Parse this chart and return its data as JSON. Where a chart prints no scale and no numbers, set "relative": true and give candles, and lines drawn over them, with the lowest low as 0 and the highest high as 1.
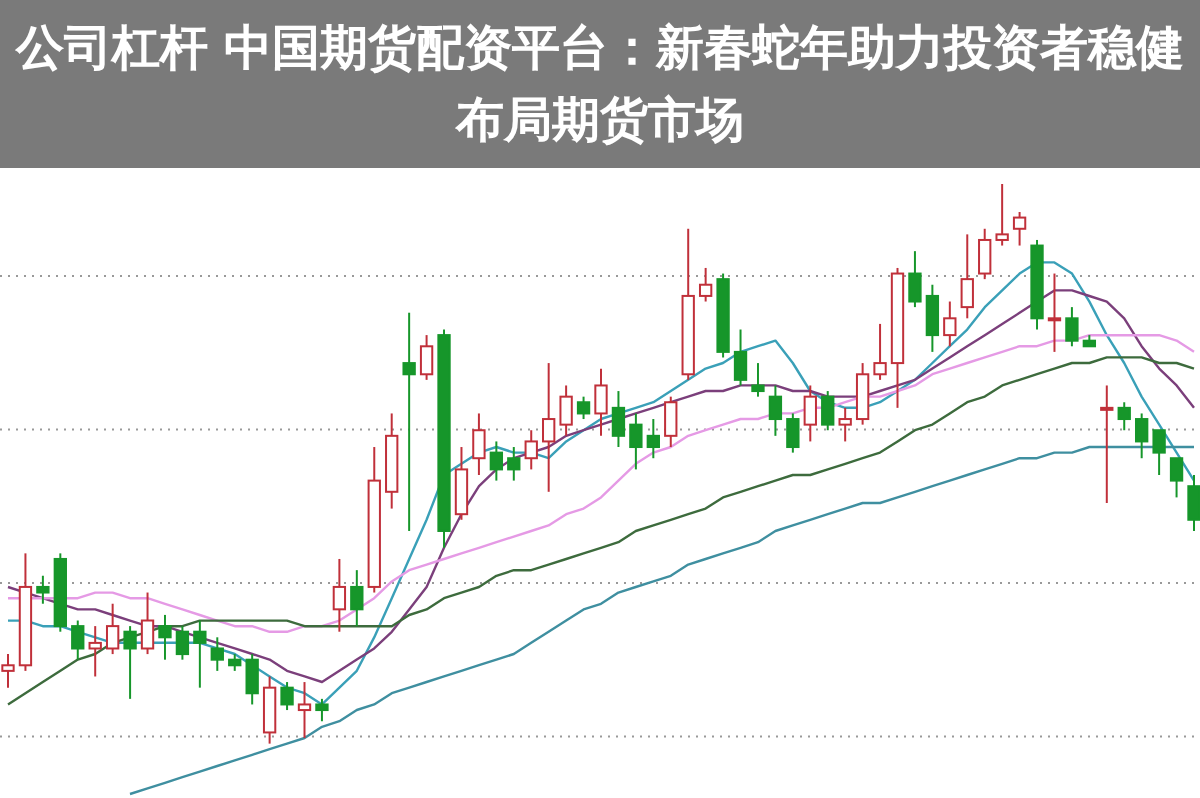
{
  "chart_data": {
    "type": "candlestick",
    "title": "公司杠杆 中国期货配资平台：新春蛇年助力投资者稳健布局期货市场",
    "relative": true,
    "grid": "y",
    "categories": [
      null,
      null,
      null,
      null,
      null,
      null,
      null,
      null,
      null,
      null,
      null,
      null,
      null,
      null,
      null,
      null,
      null,
      null,
      null,
      null,
      null,
      null,
      null,
      null,
      null,
      null,
      null,
      null,
      null,
      null,
      null,
      null,
      null,
      null,
      null,
      null,
      null,
      null,
      null,
      null,
      null,
      null,
      null,
      null,
      null,
      null,
      null,
      null,
      null,
      null,
      null,
      null,
      null,
      null,
      null,
      null,
      null,
      null,
      null,
      null,
      null,
      null,
      null,
      null,
      null,
      null,
      null,
      null,
      null
    ],
    "ohlc": [
      [
        0.13,
        0.16,
        0.1,
        0.14
      ],
      [
        0.14,
        0.34,
        0.13,
        0.28
      ],
      [
        0.28,
        0.3,
        0.25,
        0.27
      ],
      [
        0.33,
        0.34,
        0.2,
        0.21
      ],
      [
        0.21,
        0.22,
        0.15,
        0.17
      ],
      [
        0.17,
        0.21,
        0.12,
        0.18
      ],
      [
        0.17,
        0.25,
        0.16,
        0.21
      ],
      [
        0.2,
        0.21,
        0.08,
        0.17
      ],
      [
        0.17,
        0.27,
        0.16,
        0.22
      ],
      [
        0.21,
        0.23,
        0.15,
        0.19
      ],
      [
        0.2,
        0.21,
        0.15,
        0.16
      ],
      [
        0.2,
        0.22,
        0.1,
        0.18
      ],
      [
        0.17,
        0.19,
        0.13,
        0.15
      ],
      [
        0.15,
        0.16,
        0.13,
        0.14
      ],
      [
        0.15,
        0.16,
        0.07,
        0.09
      ],
      [
        0.02,
        0.12,
        0,
        0.1
      ],
      [
        0.1,
        0.11,
        0.06,
        0.07
      ],
      [
        0.06,
        0.11,
        0.01,
        0.07
      ],
      [
        0.07,
        0.08,
        0.04,
        0.06
      ],
      [
        0.24,
        0.33,
        0.2,
        0.28
      ],
      [
        0.28,
        0.31,
        0.21,
        0.24
      ],
      [
        0.28,
        0.53,
        0.27,
        0.47
      ],
      [
        0.45,
        0.59,
        0.42,
        0.55
      ],
      [
        0.68,
        0.77,
        0.38,
        0.66
      ],
      [
        0.66,
        0.73,
        0.65,
        0.71
      ],
      [
        0.73,
        0.74,
        0.35,
        0.38
      ],
      [
        0.41,
        0.53,
        0.4,
        0.49
      ],
      [
        0.51,
        0.59,
        0.48,
        0.56
      ],
      [
        0.52,
        0.54,
        0.47,
        0.49
      ],
      [
        0.51,
        0.53,
        0.47,
        0.49
      ],
      [
        0.51,
        0.56,
        0.49,
        0.54
      ],
      [
        0.54,
        0.68,
        0.45,
        0.58
      ],
      [
        0.57,
        0.64,
        0.55,
        0.62
      ],
      [
        0.61,
        0.62,
        0.58,
        0.59
      ],
      [
        0.59,
        0.67,
        0.55,
        0.64
      ],
      [
        0.6,
        0.63,
        0.53,
        0.55
      ],
      [
        0.57,
        0.59,
        0.49,
        0.53
      ],
      [
        0.55,
        0.58,
        0.51,
        0.53
      ],
      [
        0.55,
        0.62,
        0.53,
        0.61
      ],
      [
        0.66,
        0.92,
        0.65,
        0.8
      ],
      [
        0.8,
        0.85,
        0.79,
        0.82
      ],
      [
        0.83,
        0.84,
        0.69,
        0.7
      ],
      [
        0.7,
        0.74,
        0.64,
        0.65
      ],
      [
        0.64,
        0.68,
        0.62,
        0.63
      ],
      [
        0.62,
        0.64,
        0.55,
        0.58
      ],
      [
        0.58,
        0.59,
        0.52,
        0.53
      ],
      [
        0.57,
        0.64,
        0.54,
        0.62
      ],
      [
        0.62,
        0.63,
        0.56,
        0.57
      ],
      [
        0.57,
        0.6,
        0.54,
        0.58
      ],
      [
        0.58,
        0.68,
        0.57,
        0.66
      ],
      [
        0.66,
        0.75,
        0.65,
        0.68
      ],
      [
        0.68,
        0.85,
        0.6,
        0.84
      ],
      [
        0.84,
        0.88,
        0.78,
        0.79
      ],
      [
        0.8,
        0.82,
        0.7,
        0.73
      ],
      [
        0.73,
        0.79,
        0.71,
        0.76
      ],
      [
        0.78,
        0.91,
        0.76,
        0.83
      ],
      [
        0.84,
        0.92,
        0.83,
        0.9
      ],
      [
        0.9,
        1,
        0.89,
        0.91
      ],
      [
        0.92,
        0.95,
        0.89,
        0.94
      ],
      [
        0.89,
        0.9,
        0.74,
        0.76
      ],
      [
        0.76,
        0.84,
        0.7,
        0.76
      ],
      [
        0.76,
        0.78,
        0.71,
        0.72
      ],
      [
        0.72,
        0.73,
        0.71,
        0.71
      ],
      [
        0.6,
        0.64,
        0.43,
        0.6
      ],
      [
        0.6,
        0.61,
        0.56,
        0.58
      ],
      [
        0.58,
        0.59,
        0.51,
        0.54
      ],
      [
        0.56,
        0.56,
        0.48,
        0.52
      ],
      [
        0.51,
        0.51,
        0.44,
        0.47
      ],
      [
        0.46,
        0.48,
        0.38,
        0.4
      ]
    ],
    "series": [
      {
        "type": "line",
        "color": "#3aa0b8",
        "values": [
          0.22,
          0.22,
          0.21,
          0.21,
          0.2,
          0.19,
          0.18,
          0.18,
          0.18,
          0.18,
          0.18,
          0.18,
          0.17,
          0.16,
          0.14,
          0.12,
          0.1,
          0.09,
          0.07,
          0.1,
          0.13,
          0.19,
          0.26,
          0.33,
          0.4,
          0.48,
          0.5,
          0.52,
          0.53,
          0.52,
          0.52,
          0.51,
          0.54,
          0.56,
          0.58,
          0.59,
          0.6,
          0.61,
          0.63,
          0.65,
          0.67,
          0.68,
          0.7,
          0.71,
          0.72,
          0.68,
          0.63,
          0.61,
          0.6,
          0.6,
          0.61,
          0.63,
          0.65,
          0.68,
          0.71,
          0.74,
          0.78,
          0.81,
          0.84,
          0.86,
          0.86,
          0.84,
          0.79,
          0.73,
          0.68,
          0.62,
          0.57,
          0.52,
          0.47
        ]
      },
      {
        "type": "line",
        "color": "#7b3f7b",
        "values": [
          0.28,
          0.27,
          0.26,
          0.25,
          0.24,
          0.24,
          0.23,
          0.22,
          0.21,
          0.21,
          0.2,
          0.19,
          0.18,
          0.17,
          0.16,
          0.15,
          0.13,
          0.12,
          0.11,
          0.13,
          0.15,
          0.17,
          0.2,
          0.24,
          0.28,
          0.35,
          0.41,
          0.46,
          0.49,
          0.51,
          0.52,
          0.53,
          0.55,
          0.56,
          0.57,
          0.58,
          0.59,
          0.6,
          0.61,
          0.62,
          0.63,
          0.63,
          0.64,
          0.64,
          0.64,
          0.63,
          0.63,
          0.62,
          0.62,
          0.62,
          0.63,
          0.64,
          0.65,
          0.67,
          0.69,
          0.71,
          0.73,
          0.75,
          0.77,
          0.79,
          0.81,
          0.81,
          0.8,
          0.79,
          0.76,
          0.71,
          0.67,
          0.64,
          0.6
        ]
      },
      {
        "type": "line",
        "color": "#e59ae5",
        "values": [
          0.26,
          0.26,
          0.26,
          0.26,
          0.26,
          0.27,
          0.27,
          0.26,
          0.26,
          0.25,
          0.24,
          0.23,
          0.22,
          0.21,
          0.21,
          0.2,
          0.2,
          0.21,
          0.21,
          0.22,
          0.24,
          0.26,
          0.29,
          0.31,
          0.32,
          0.33,
          0.34,
          0.35,
          0.36,
          0.37,
          0.38,
          0.39,
          0.41,
          0.42,
          0.44,
          0.47,
          0.5,
          0.52,
          0.53,
          0.55,
          0.56,
          0.57,
          0.58,
          0.58,
          0.59,
          0.59,
          0.6,
          0.6,
          0.61,
          0.62,
          0.62,
          0.63,
          0.64,
          0.66,
          0.67,
          0.68,
          0.69,
          0.7,
          0.71,
          0.71,
          0.72,
          0.72,
          0.73,
          0.73,
          0.73,
          0.73,
          0.73,
          0.72,
          0.7
        ]
      },
      {
        "type": "line",
        "color": "#3d6b3d",
        "values": [
          0.07,
          0.09,
          0.11,
          0.13,
          0.15,
          0.16,
          0.18,
          0.19,
          0.2,
          0.21,
          0.21,
          0.22,
          0.22,
          0.22,
          0.22,
          0.22,
          0.22,
          0.21,
          0.21,
          0.21,
          0.21,
          0.21,
          0.21,
          0.23,
          0.24,
          0.26,
          0.27,
          0.28,
          0.3,
          0.31,
          0.31,
          0.32,
          0.33,
          0.34,
          0.35,
          0.36,
          0.38,
          0.39,
          0.4,
          0.41,
          0.42,
          0.44,
          0.45,
          0.46,
          0.47,
          0.48,
          0.48,
          0.49,
          0.5,
          0.51,
          0.52,
          0.54,
          0.56,
          0.57,
          0.59,
          0.61,
          0.62,
          0.64,
          0.65,
          0.66,
          0.67,
          0.68,
          0.68,
          0.69,
          0.69,
          0.69,
          0.68,
          0.68,
          0.67
        ]
      },
      {
        "type": "line",
        "color": "#3f8fa0",
        "values": [
          null,
          null,
          null,
          null,
          null,
          null,
          null,
          -0.09,
          -0.08,
          -0.07,
          -0.06,
          -0.05,
          -0.04,
          -0.03,
          -0.02,
          -0.01,
          0.0,
          0.01,
          0.03,
          0.04,
          0.06,
          0.07,
          0.09,
          0.1,
          0.11,
          0.12,
          0.13,
          0.14,
          0.15,
          0.16,
          0.18,
          0.2,
          0.22,
          0.24,
          0.25,
          0.27,
          0.28,
          0.29,
          0.3,
          0.32,
          0.33,
          0.34,
          0.35,
          0.36,
          0.38,
          0.39,
          0.4,
          0.41,
          0.42,
          0.43,
          0.43,
          0.44,
          0.45,
          0.46,
          0.47,
          0.48,
          0.49,
          0.5,
          0.51,
          0.51,
          0.52,
          0.52,
          0.53,
          0.53,
          0.53,
          0.53,
          0.53,
          0.53,
          0.53
        ]
      }
    ]
  }
}
